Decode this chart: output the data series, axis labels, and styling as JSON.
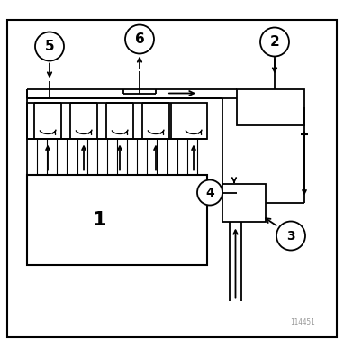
{
  "bg_color": "#ffffff",
  "line_color": "#000000",
  "fig_width": 3.82,
  "fig_height": 3.97,
  "dpi": 100,
  "watermark_gray": "#999999",
  "watermark_blue": "#0055cc",
  "watermark_text": "114451"
}
